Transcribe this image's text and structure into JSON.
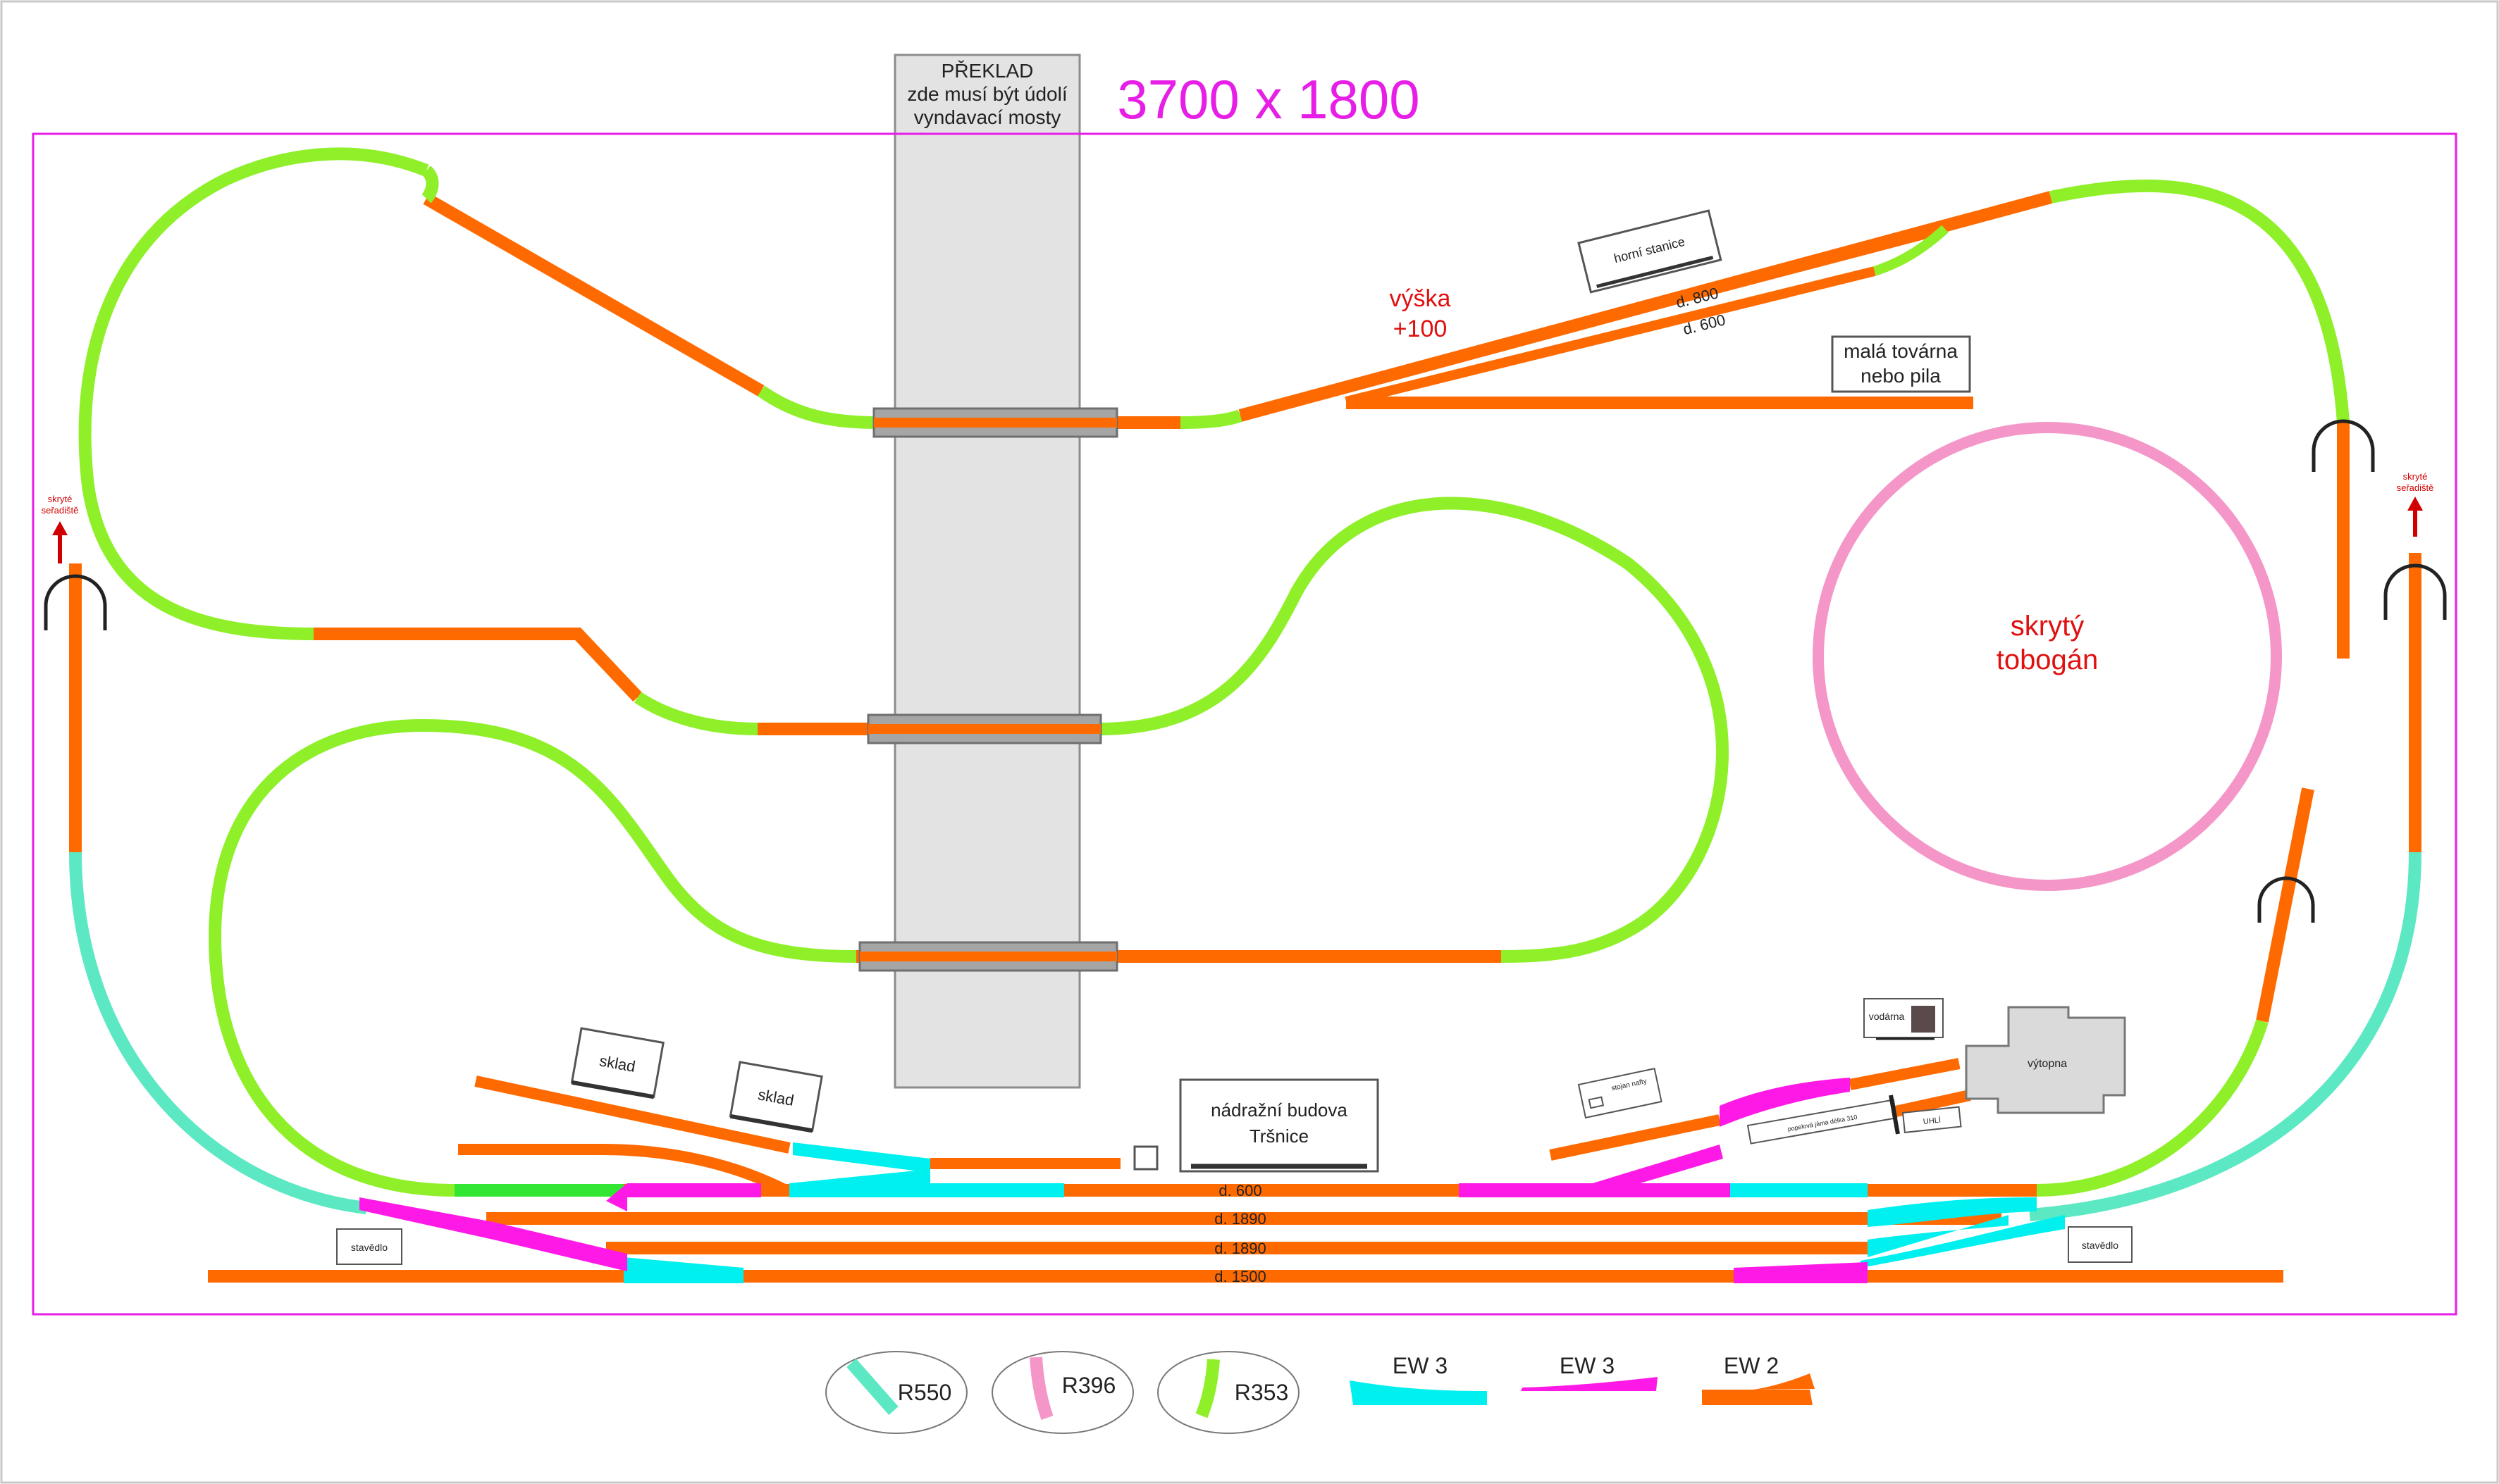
{
  "dimensions_label": "3700 x 1800",
  "bridge": {
    "line1": "PŘEKLAD",
    "line2": "zde musí být údolí",
    "line3": "vyndavací mosty"
  },
  "height_note": {
    "line1": "výška",
    "line2": "+100"
  },
  "factory": {
    "line1": "malá továrna",
    "line2": "nebo pila"
  },
  "tunnel_loop": {
    "line1": "skrytý",
    "line2": "tobogán"
  },
  "hidden_yard_left": {
    "line1": "skryté",
    "line2": "seřadiště"
  },
  "hidden_yard_right": {
    "line1": "skryté",
    "line2": "seřadiště"
  },
  "buildings": {
    "upper_station": "horní stanice",
    "warehouse_1": "sklad",
    "warehouse_2": "sklad",
    "station_line1": "nádražní budova",
    "station_line2": "Tršnice",
    "water_tower": "vodárna",
    "depot": "výtopna",
    "fuel": "stojan nafty",
    "coal": "UHLÍ",
    "turntable_note": "popelová jáma délka 310",
    "signal_box_left": "stavědlo",
    "signal_box_right": "stavědlo"
  },
  "track_labels": {
    "upper_800": "d. 800",
    "upper_600": "d. 600",
    "main_600": "d. 600",
    "main_1890_a": "d. 1890",
    "main_1890_b": "d. 1890",
    "main_1500": "d. 1500"
  },
  "legend": [
    {
      "label": "R550",
      "color": "#5de8c4"
    },
    {
      "label": "R396",
      "color": "#f497c8"
    },
    {
      "label": "R353",
      "color": "#8ff02a"
    },
    {
      "label": "EW 3",
      "color": "#00f0f0"
    },
    {
      "label": "EW 3",
      "color": "#ff19e6"
    },
    {
      "label": "EW 2",
      "color": "#ff6a00"
    }
  ],
  "colors": {
    "straight": "#ff6a00",
    "r353": "#8ff02a",
    "r396": "#f497c8",
    "r550": "#5de8c4",
    "ew3_cyan": "#00f0f0",
    "ew3_magenta": "#ff19e6",
    "board": "#e61ee6",
    "dims_text": "#e61ee6",
    "note_red": "#e01010"
  }
}
